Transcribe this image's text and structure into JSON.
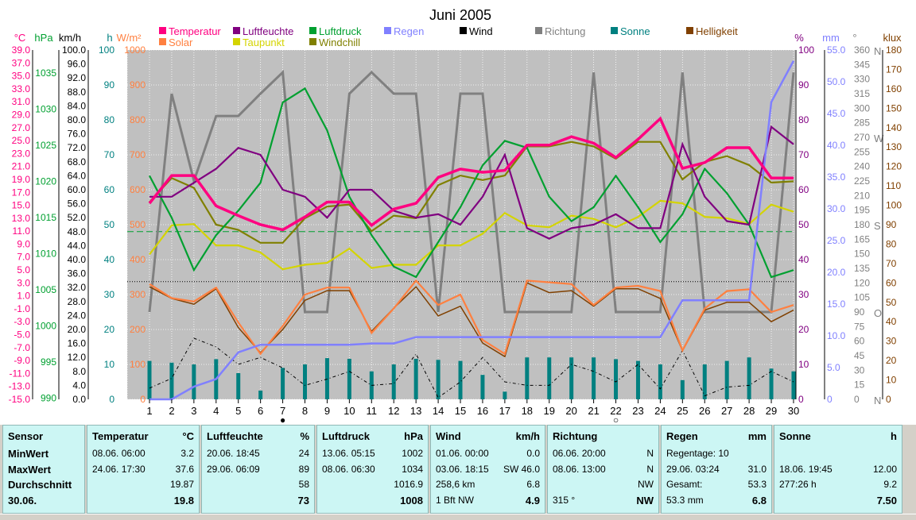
{
  "chart_data": {
    "type": "line",
    "title": "Juni 2005",
    "x": [
      1,
      2,
      3,
      4,
      5,
      6,
      7,
      8,
      9,
      10,
      11,
      12,
      13,
      14,
      15,
      16,
      17,
      18,
      19,
      20,
      21,
      22,
      23,
      24,
      25,
      26,
      27,
      28,
      29,
      30
    ],
    "x_ticks": [
      "1",
      "2",
      "3",
      "4",
      "5",
      "6",
      "7",
      "8",
      "9",
      "10",
      "11",
      "12",
      "13",
      "14",
      "15",
      "16",
      "17",
      "18",
      "19",
      "20",
      "21",
      "22",
      "23",
      "24",
      "25",
      "26",
      "27",
      "28",
      "29",
      "30"
    ],
    "legend": [
      {
        "name": "Temperatur",
        "color": "#ff0080"
      },
      {
        "name": "Solar",
        "color": "#ff8040"
      },
      {
        "name": "Luftfeuchte",
        "color": "#800080"
      },
      {
        "name": "Taupunkt",
        "color": "#d4d400"
      },
      {
        "name": "Luftdruck",
        "color": "#00a030"
      },
      {
        "name": "Windchill",
        "color": "#808000"
      },
      {
        "name": "Regen",
        "color": "#8080ff"
      },
      {
        "name": "Wind",
        "color": "#000000"
      },
      {
        "name": "Richtung",
        "color": "#808080"
      },
      {
        "name": "Sonne",
        "color": "#008080"
      },
      {
        "name": "Helligkeit",
        "color": "#804000"
      }
    ],
    "axes": {
      "temp": {
        "unit": "°C",
        "color": "#ff0080",
        "min": -15,
        "max": 39,
        "ticks": [
          "39.0",
          "37.0",
          "35.0",
          "33.0",
          "31.0",
          "29.0",
          "27.0",
          "25.0",
          "23.0",
          "21.0",
          "19.0",
          "17.0",
          "15.0",
          "13.0",
          "11.0",
          "9.0",
          "7.0",
          "5.0",
          "3.0",
          "1.0",
          "-1.0",
          "-3.0",
          "-5.0",
          "-7.0",
          "-9.0",
          "-11.0",
          "-13.0",
          "-15.0"
        ]
      },
      "pressure": {
        "unit": "hPa",
        "color": "#00a030",
        "ticks": [
          "1035",
          "1030",
          "1025",
          "1020",
          "1015",
          "1010",
          "1005",
          "1000",
          "995",
          "990"
        ]
      },
      "wind": {
        "unit": "km/h",
        "color": "#000000",
        "min": 0,
        "max": 100,
        "ticks": [
          "100.0",
          "96.0",
          "92.0",
          "88.0",
          "84.0",
          "80.0",
          "76.0",
          "72.0",
          "68.0",
          "64.0",
          "60.0",
          "56.0",
          "52.0",
          "48.0",
          "44.0",
          "40.0",
          "36.0",
          "32.0",
          "28.0",
          "24.0",
          "20.0",
          "16.0",
          "12.0",
          "8.0",
          "4.0",
          "0.0"
        ]
      },
      "solar": {
        "unit_h": "h",
        "unit": "W/m²",
        "color": "#ff8040",
        "min": 0,
        "max": 1000,
        "ticks_h": [
          "100",
          "90",
          "80",
          "70",
          "60",
          "50",
          "40",
          "30",
          "20",
          "10",
          "0"
        ],
        "ticks": [
          "1000",
          "900",
          "800",
          "700",
          "600",
          "500",
          "400",
          "300",
          "200",
          "100",
          "0"
        ]
      },
      "humidity": {
        "unit": "%",
        "color": "#800080",
        "min": 0,
        "max": 100,
        "ticks": [
          "100",
          "90",
          "80",
          "70",
          "60",
          "50",
          "40",
          "30",
          "20",
          "10",
          "0"
        ]
      },
      "rain": {
        "unit": "mm",
        "color": "#8080ff",
        "min": 0,
        "max": 55,
        "ticks": [
          "55.0",
          "50.0",
          "45.0",
          "40.0",
          "35.0",
          "30.0",
          "25.0",
          "20.0",
          "15.0",
          "10.0",
          "5.0",
          "0"
        ]
      },
      "direction": {
        "unit": "°",
        "color": "#808080",
        "min": 0,
        "max": 360,
        "ticks": [
          "360",
          "345",
          "330",
          "315",
          "300",
          "285",
          "270",
          "255",
          "240",
          "225",
          "210",
          "195",
          "180",
          "165",
          "150",
          "135",
          "120",
          "105",
          "90",
          "75",
          "60",
          "45",
          "30",
          "15",
          "0"
        ],
        "compass": [
          {
            "label": "N",
            "deg": 360
          },
          {
            "label": "W",
            "deg": 270
          },
          {
            "label": "S",
            "deg": 180
          },
          {
            "label": "O",
            "deg": 90
          },
          {
            "label": "N",
            "deg": 0
          }
        ]
      },
      "lux": {
        "unit": "klux",
        "color": "#804000",
        "min": 0,
        "max": 180,
        "ticks": [
          "180",
          "170",
          "160",
          "150",
          "140",
          "130",
          "120",
          "110",
          "100",
          "90",
          "80",
          "70",
          "60",
          "50",
          "40",
          "30",
          "20",
          "10",
          "0"
        ]
      }
    },
    "series": [
      {
        "name": "Temperatur",
        "axis": "temp",
        "values": [
          15.3,
          19.6,
          19.6,
          14.9,
          13.4,
          12.0,
          11.2,
          13.2,
          15.5,
          15.5,
          11.9,
          14.4,
          15.3,
          19.3,
          20.6,
          20.1,
          20.4,
          24.3,
          24.3,
          25.6,
          24.6,
          22.4,
          25.2,
          28.4,
          20.7,
          21.6,
          23.9,
          23.9,
          19.2,
          19.2
        ]
      },
      {
        "name": "Windchill",
        "axis": "temp",
        "values": [
          15.5,
          19.2,
          17.7,
          12.0,
          11.2,
          9.2,
          9.2,
          13.0,
          14.8,
          15.1,
          11.0,
          13.4,
          13.0,
          18.1,
          19.6,
          18.9,
          19.6,
          24.1,
          24.1,
          24.8,
          24.1,
          22.2,
          24.8,
          24.8,
          19.0,
          21.7,
          22.6,
          21.2,
          18.5,
          18.7
        ]
      },
      {
        "name": "Taupunkt",
        "axis": "temp",
        "values": [
          7.4,
          11.9,
          12.1,
          8.8,
          8.8,
          7.7,
          5.1,
          5.8,
          6.1,
          8.3,
          5.3,
          5.8,
          5.8,
          8.8,
          8.8,
          10.6,
          13.8,
          11.9,
          11.6,
          13.4,
          12.9,
          11.6,
          13.2,
          15.7,
          15.3,
          13.2,
          13.0,
          12.1,
          15.1,
          14.0
        ]
      },
      {
        "name": "Luftfeuchte",
        "axis": "humidity",
        "values": [
          58,
          58,
          62,
          66,
          72,
          70,
          60,
          58,
          52,
          60,
          60,
          54,
          52,
          53,
          50,
          58,
          70,
          49,
          46,
          49,
          50,
          53,
          49,
          49,
          73,
          58,
          51,
          50,
          78,
          73
        ]
      },
      {
        "name": "Luftdruck",
        "axis": "pressure_pct",
        "values": [
          64,
          52,
          37,
          47,
          54,
          62,
          85,
          89,
          77,
          58,
          47,
          38,
          35,
          45,
          55,
          67,
          74,
          72,
          58,
          51,
          55,
          64,
          55,
          45,
          53,
          66,
          59,
          50,
          35,
          37
        ]
      },
      {
        "name": "Solar",
        "axis": "solar",
        "values": [
          330,
          290,
          280,
          320,
          220,
          130,
          210,
          300,
          320,
          320,
          190,
          260,
          340,
          270,
          300,
          170,
          130,
          340,
          335,
          330,
          270,
          320,
          325,
          310,
          140,
          260,
          310,
          315,
          250,
          270
        ]
      },
      {
        "name": "Helligkeit",
        "axis": "lux",
        "values": [
          58,
          52,
          49,
          57,
          37,
          24,
          36,
          51,
          56,
          56,
          35,
          47,
          58,
          43,
          48,
          29,
          22,
          60,
          55,
          56,
          48,
          57,
          57,
          52,
          25,
          46,
          50,
          50,
          40,
          46
        ]
      },
      {
        "name": "Richtung",
        "axis": "direction",
        "values": [
          90,
          315,
          225,
          292,
          292,
          315,
          337,
          90,
          90,
          315,
          337,
          315,
          315,
          90,
          315,
          315,
          90,
          90,
          90,
          90,
          337,
          90,
          90,
          90,
          337,
          90,
          90,
          90,
          90,
          337
        ]
      },
      {
        "name": "Regen",
        "axis": "rain",
        "values": [
          0,
          0,
          2.0,
          3.2,
          7.4,
          8.6,
          8.6,
          8.6,
          8.6,
          8.6,
          8.8,
          8.8,
          9.8,
          9.8,
          9.8,
          9.8,
          9.8,
          9.8,
          9.8,
          9.8,
          9.8,
          9.8,
          9.8,
          9.8,
          15.6,
          15.6,
          15.6,
          15.6,
          46.8,
          53.3
        ]
      },
      {
        "name": "Wind",
        "axis": "wind",
        "values": [
          3.2,
          6.0,
          17.5,
          15.0,
          10.0,
          12.0,
          9.0,
          4.0,
          5.8,
          8.0,
          4.0,
          4.5,
          13.0,
          0.5,
          5.0,
          12.0,
          5.0,
          4.0,
          4.0,
          10.0,
          8.0,
          5.0,
          10.0,
          3.0,
          14.0,
          1.0,
          3.5,
          4.0,
          8.0,
          5.0
        ]
      },
      {
        "name": "Sonne",
        "axis": "sonne_h",
        "values": [
          11.0,
          10.5,
          10.0,
          11.5,
          7.5,
          2.5,
          9.0,
          10.0,
          11.8,
          11.6,
          8.0,
          10.0,
          11.6,
          11.3,
          11.0,
          7.0,
          2.2,
          12.0,
          12.0,
          12.0,
          12.0,
          11.5,
          11.0,
          10.0,
          5.5,
          10.0,
          11.0,
          12.0,
          8.8,
          8.0
        ]
      }
    ],
    "references": [
      {
        "name": "Temperatur-Durchschnitt",
        "axis": "temp",
        "value": 3.2,
        "color": "#000000",
        "style": "dotted"
      },
      {
        "name": "Luftdruck-Referenz",
        "axis": "pressure_pct",
        "value": 48,
        "color": "#00a030",
        "style": "dashed"
      }
    ],
    "markers": [
      {
        "symbol": "●",
        "day": 7
      },
      {
        "symbol": "○",
        "day": 22
      }
    ]
  },
  "stats": {
    "labels": {
      "sensor": "Sensor",
      "min": "MinWert",
      "max": "MaxWert",
      "avg": "Durchschnitt",
      "date": "30.06."
    },
    "temperatur": {
      "title": "Temperatur",
      "unit": "°C",
      "min_time": "08.06.  06:00",
      "min": "3.2",
      "max_time": "24.06.  17:30",
      "max": "37.6",
      "avg": "19.87",
      "today": "19.8"
    },
    "luftfeuchte": {
      "title": "Luftfeuchte",
      "unit": "%",
      "min_time": "20.06.  18:45",
      "min": "24",
      "max_time": "29.06.  06:09",
      "max": "89",
      "avg": "58",
      "today": "73"
    },
    "luftdruck": {
      "title": "Luftdruck",
      "unit": "hPa",
      "min_time": "13.06.  05:15",
      "min": "1002",
      "max_time": "08.06.  06:30",
      "max": "1034",
      "avg": "1016.9",
      "today": "1008"
    },
    "wind": {
      "title": "Wind",
      "unit": "km/h",
      "min_time": "01.06.  00:00",
      "min": "0.0",
      "max_time": "03.06.  18:15",
      "max": "SW 46.0",
      "avg_left": "258,6 km",
      "avg": "6.8",
      "today_left": "1 Bft NW",
      "today": "4.9"
    },
    "richtung": {
      "title": "Richtung",
      "min_time": "06.06.  20:00",
      "min": "N",
      "max_time": "08.06.  13:00",
      "max": "N",
      "avg": "NW",
      "today_left": "315 °",
      "today": "NW"
    },
    "regen": {
      "title": "Regen",
      "unit": "mm",
      "min_left": "Regentage: 10",
      "max_left": "29.06.  03:24",
      "max": "31.0",
      "avg_left": "Gesamt:",
      "avg": "53.3",
      "today_left": "53.3 mm",
      "today": "6.8"
    },
    "sonne": {
      "title": "Sonne",
      "unit": "h",
      "max_left": "18.06.  19:45",
      "max": "12.00",
      "avg_left": "277:26 h",
      "avg": "9.2",
      "today": "7.50"
    }
  }
}
